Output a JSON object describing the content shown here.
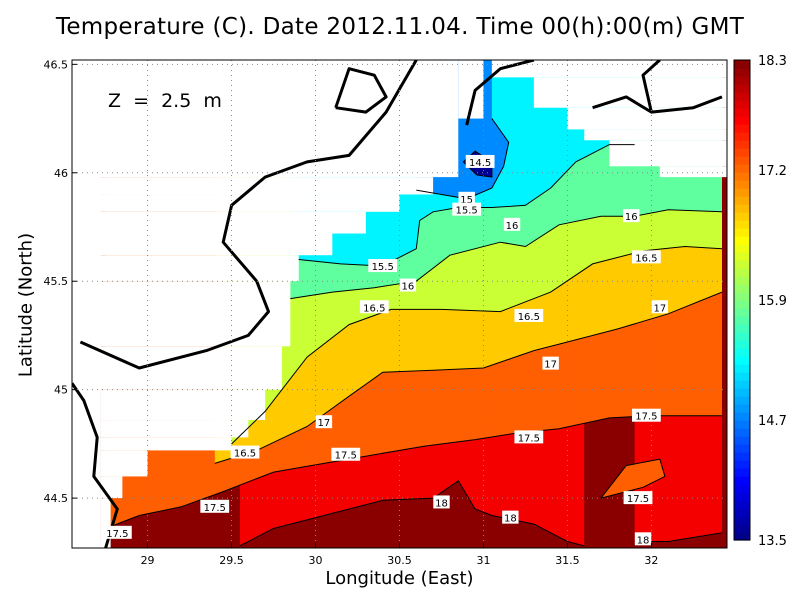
{
  "chart_data": {
    "type": "heatmap",
    "title": "Temperature (C). Date 2012.11.04. Time 00(h):00(m) GMT",
    "xlabel": "Longitude (East)",
    "ylabel": "Latitude (North)",
    "annotation": "Z  =  2.5  m",
    "xlim": [
      28.55,
      32.45
    ],
    "ylim": [
      44.27,
      46.52
    ],
    "x_ticks": [
      29,
      29.5,
      30,
      30.5,
      31,
      31.5,
      32
    ],
    "x_tick_labels": [
      "29",
      "29.5",
      "30",
      "30.5",
      "31",
      "31.5",
      "32"
    ],
    "y_ticks": [
      44.5,
      45,
      45.5,
      46,
      46.5
    ],
    "y_tick_labels": [
      "44.5",
      "45",
      "45.5",
      "46",
      "46.5"
    ],
    "grid": true,
    "colorbar": {
      "range": [
        13.5,
        18.3
      ],
      "ticks": [
        13.5,
        14.7,
        15.9,
        17.2,
        18.3
      ],
      "tick_labels": [
        "13.5",
        "14.7",
        "15.9",
        "17.2",
        "18.3"
      ],
      "colors": [
        "#00007f",
        "#0000ff",
        "#007fff",
        "#00ffff",
        "#7fff7f",
        "#ffff00",
        "#ff7f00",
        "#ff0000",
        "#7f0000"
      ]
    },
    "contours": [
      {
        "level": 14.5,
        "label": "14.5",
        "points": [
          [
            30.96,
            45.99
          ],
          [
            30.88,
            46.05
          ],
          [
            30.95,
            46.1
          ],
          [
            31.05,
            46.05
          ],
          [
            31.05,
            45.98
          ],
          [
            30.96,
            45.99
          ]
        ]
      },
      {
        "level": 15,
        "label": "15",
        "points": [
          [
            30.6,
            45.92
          ],
          [
            30.75,
            45.9
          ],
          [
            30.9,
            45.88
          ],
          [
            31.05,
            45.93
          ],
          [
            31.12,
            46.03
          ],
          [
            31.15,
            46.14
          ],
          [
            31.05,
            46.25
          ]
        ]
      },
      {
        "level": 15.5,
        "label": "15.5",
        "points": [
          [
            29.9,
            45.6
          ],
          [
            30.15,
            45.58
          ],
          [
            30.4,
            45.57
          ],
          [
            30.6,
            45.65
          ],
          [
            30.62,
            45.78
          ],
          [
            30.7,
            45.82
          ],
          [
            30.85,
            45.84
          ],
          [
            31.05,
            45.84
          ],
          [
            31.25,
            45.85
          ],
          [
            31.4,
            45.93
          ],
          [
            31.55,
            46.05
          ],
          [
            31.75,
            46.13
          ],
          [
            31.9,
            46.13
          ]
        ]
      },
      {
        "level": 16,
        "label": "16",
        "points": [
          [
            29.85,
            45.42
          ],
          [
            30.1,
            45.45
          ],
          [
            30.35,
            45.47
          ],
          [
            30.6,
            45.5
          ],
          [
            30.8,
            45.62
          ],
          [
            31.1,
            45.68
          ],
          [
            31.25,
            45.66
          ],
          [
            31.45,
            45.76
          ],
          [
            31.7,
            45.8
          ],
          [
            31.9,
            45.8
          ],
          [
            32.1,
            45.83
          ],
          [
            32.42,
            45.82
          ]
        ]
      },
      {
        "level": 16.5,
        "label": "16.5",
        "points": [
          [
            29.5,
            44.75
          ],
          [
            29.7,
            44.9
          ],
          [
            29.95,
            45.15
          ],
          [
            30.2,
            45.3
          ],
          [
            30.45,
            45.37
          ],
          [
            30.75,
            45.37
          ],
          [
            31.1,
            45.36
          ],
          [
            31.4,
            45.45
          ],
          [
            31.65,
            45.58
          ],
          [
            31.95,
            45.64
          ],
          [
            32.2,
            45.66
          ],
          [
            32.42,
            45.65
          ]
        ]
      },
      {
        "level": 17,
        "label": "17",
        "points": [
          [
            29.4,
            44.66
          ],
          [
            29.65,
            44.72
          ],
          [
            29.95,
            44.83
          ],
          [
            30.2,
            44.97
          ],
          [
            30.4,
            45.08
          ],
          [
            30.7,
            45.09
          ],
          [
            31.0,
            45.1
          ],
          [
            31.3,
            45.18
          ],
          [
            31.5,
            45.22
          ],
          [
            31.8,
            45.28
          ],
          [
            32.1,
            45.35
          ],
          [
            32.42,
            45.45
          ]
        ]
      },
      {
        "level": 17.5,
        "label": "17.5",
        "points": [
          [
            28.75,
            44.36
          ],
          [
            28.95,
            44.42
          ],
          [
            29.2,
            44.46
          ],
          [
            29.45,
            44.53
          ],
          [
            29.75,
            44.62
          ],
          [
            30.05,
            44.66
          ],
          [
            30.35,
            44.7
          ],
          [
            30.65,
            44.74
          ],
          [
            30.95,
            44.77
          ],
          [
            31.2,
            44.8
          ],
          [
            31.45,
            44.82
          ],
          [
            31.75,
            44.87
          ],
          [
            32.0,
            44.88
          ],
          [
            32.42,
            44.88
          ]
        ]
      },
      {
        "level": 17.5,
        "label": "17.5",
        "points": [
          [
            31.7,
            44.5
          ],
          [
            31.95,
            44.55
          ],
          [
            32.08,
            44.6
          ],
          [
            32.05,
            44.68
          ],
          [
            31.85,
            44.65
          ],
          [
            31.7,
            44.5
          ]
        ]
      },
      {
        "level": 18,
        "label": "18",
        "points": [
          [
            29.55,
            44.28
          ],
          [
            29.75,
            44.36
          ],
          [
            30.05,
            44.42
          ],
          [
            30.4,
            44.49
          ],
          [
            30.7,
            44.5
          ],
          [
            30.85,
            44.58
          ],
          [
            30.95,
            44.45
          ],
          [
            31.05,
            44.42
          ],
          [
            31.3,
            44.38
          ],
          [
            31.5,
            44.3
          ],
          [
            31.6,
            44.28
          ]
        ]
      },
      {
        "level": 18,
        "label": "18",
        "points": [
          [
            31.9,
            44.3
          ],
          [
            32.1,
            44.3
          ],
          [
            32.42,
            44.34
          ]
        ]
      }
    ],
    "contour_labels": [
      {
        "text": "14.5",
        "x": 30.98,
        "y": 46.05
      },
      {
        "text": "15",
        "x": 30.9,
        "y": 45.88
      },
      {
        "text": "15.5",
        "x": 30.9,
        "y": 45.83
      },
      {
        "text": "15.5",
        "x": 30.4,
        "y": 45.57
      },
      {
        "text": "16",
        "x": 31.17,
        "y": 45.76
      },
      {
        "text": "16",
        "x": 31.88,
        "y": 45.8
      },
      {
        "text": "16",
        "x": 30.55,
        "y": 45.48
      },
      {
        "text": "16.5",
        "x": 31.97,
        "y": 45.61
      },
      {
        "text": "16.5",
        "x": 30.35,
        "y": 45.38
      },
      {
        "text": "16.5",
        "x": 31.27,
        "y": 45.34
      },
      {
        "text": "17",
        "x": 32.05,
        "y": 45.38
      },
      {
        "text": "17",
        "x": 31.4,
        "y": 45.12
      },
      {
        "text": "17",
        "x": 30.05,
        "y": 44.85
      },
      {
        "text": "17.5",
        "x": 31.97,
        "y": 44.88
      },
      {
        "text": "17.5",
        "x": 31.27,
        "y": 44.78
      },
      {
        "text": "17.5",
        "x": 30.18,
        "y": 44.7
      },
      {
        "text": "17.5",
        "x": 29.4,
        "y": 44.46
      },
      {
        "text": "17.5",
        "x": 28.82,
        "y": 44.34
      },
      {
        "text": "17.5",
        "x": 31.92,
        "y": 44.5
      },
      {
        "text": "16.5",
        "x": 29.58,
        "y": 44.71
      },
      {
        "text": "18",
        "x": 30.75,
        "y": 44.48
      },
      {
        "text": "18",
        "x": 31.16,
        "y": 44.41
      },
      {
        "text": "18",
        "x": 31.95,
        "y": 44.31
      }
    ],
    "coastline": [
      [
        [
          28.75,
          44.27
        ],
        [
          28.82,
          44.45
        ],
        [
          28.68,
          44.6
        ],
        [
          28.7,
          44.78
        ],
        [
          28.62,
          44.95
        ],
        [
          28.55,
          45.03
        ]
      ],
      [
        [
          28.6,
          45.22
        ],
        [
          28.95,
          45.1
        ],
        [
          29.35,
          45.18
        ],
        [
          29.6,
          45.25
        ],
        [
          29.72,
          45.36
        ],
        [
          29.65,
          45.5
        ],
        [
          29.45,
          45.68
        ],
        [
          29.5,
          45.85
        ],
        [
          29.7,
          45.98
        ],
        [
          29.95,
          46.05
        ],
        [
          30.2,
          46.08
        ],
        [
          30.42,
          46.28
        ],
        [
          30.6,
          46.52
        ]
      ],
      [
        [
          30.12,
          46.3
        ],
        [
          30.3,
          46.28
        ],
        [
          30.42,
          46.35
        ],
        [
          30.35,
          46.45
        ],
        [
          30.2,
          46.48
        ],
        [
          30.12,
          46.3
        ]
      ],
      [
        [
          31.3,
          46.52
        ],
        [
          31.1,
          46.48
        ],
        [
          30.95,
          46.38
        ],
        [
          30.9,
          46.22
        ]
      ],
      [
        [
          32.0,
          46.28
        ],
        [
          32.25,
          46.3
        ],
        [
          32.42,
          46.35
        ]
      ],
      [
        [
          31.65,
          46.3
        ],
        [
          31.85,
          46.35
        ],
        [
          32.0,
          46.28
        ],
        [
          31.95,
          46.45
        ],
        [
          32.05,
          46.52
        ]
      ]
    ],
    "land_cells": [
      {
        "cells": [
          [
            28.55,
            44.27,
            28.72,
            46.52
          ],
          [
            28.72,
            44.27,
            28.78,
            44.5
          ],
          [
            28.72,
            44.5,
            28.85,
            44.6
          ],
          [
            28.72,
            44.6,
            29.0,
            44.72
          ],
          [
            28.72,
            44.72,
            29.5,
            44.78
          ],
          [
            28.72,
            44.78,
            29.6,
            44.86
          ],
          [
            28.72,
            44.86,
            29.7,
            45.0
          ]
        ]
      },
      {
        "cells": [
          [
            28.55,
            45.0,
            29.8,
            45.2
          ],
          [
            28.55,
            45.2,
            29.85,
            45.5
          ],
          [
            28.55,
            45.5,
            29.9,
            45.62
          ],
          [
            28.55,
            45.62,
            30.1,
            45.72
          ],
          [
            28.55,
            45.72,
            30.3,
            45.82
          ],
          [
            28.55,
            45.82,
            30.5,
            45.9
          ],
          [
            28.55,
            45.9,
            30.7,
            45.98
          ],
          [
            28.55,
            45.98,
            30.85,
            46.52
          ]
        ]
      },
      {
        "cells": [
          [
            30.85,
            46.25,
            31.0,
            46.52
          ],
          [
            31.05,
            46.44,
            32.45,
            46.52
          ],
          [
            31.3,
            46.3,
            32.45,
            46.44
          ],
          [
            31.5,
            46.2,
            32.45,
            46.3
          ],
          [
            31.6,
            46.15,
            32.45,
            46.2
          ],
          [
            31.75,
            46.03,
            32.45,
            46.15
          ],
          [
            32.05,
            45.98,
            32.45,
            46.03
          ]
        ]
      }
    ]
  }
}
